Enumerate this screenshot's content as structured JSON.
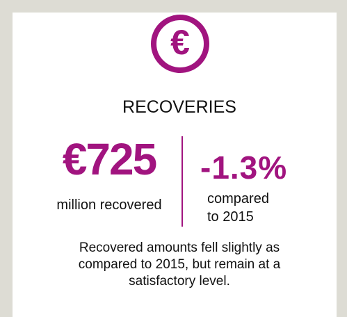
{
  "icon": {
    "symbol": "€"
  },
  "title": "RECOVERIES",
  "stat": {
    "value": "€725",
    "label": "million recovered"
  },
  "change": {
    "value": "-1.3%",
    "label_lines": [
      "compared",
      "to 2015"
    ]
  },
  "description_lines": [
    "Recovered amounts fell slightly as",
    "compared to 2015, but remain at a",
    "satisfactory level."
  ]
}
